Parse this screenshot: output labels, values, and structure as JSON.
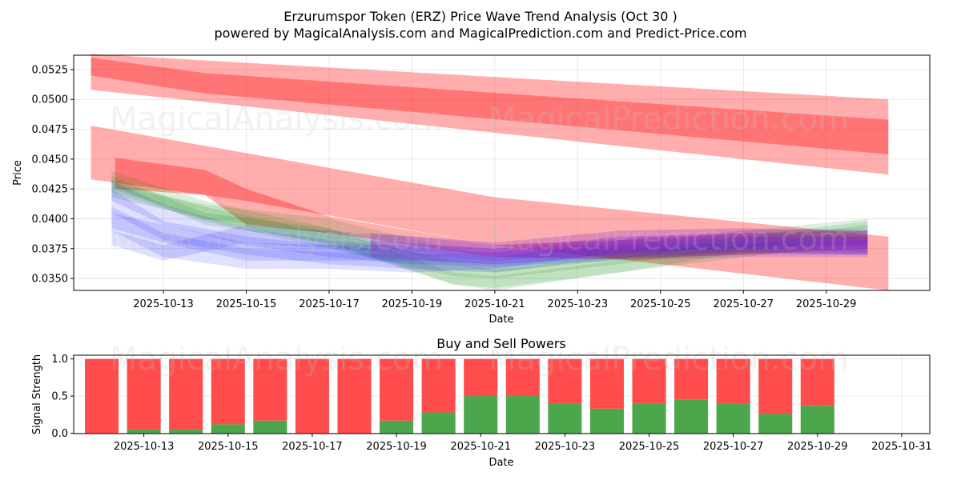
{
  "title": "Erzurumspor Token (ERZ) Price Wave Trend Analysis (Oct 30 )",
  "subtitle": "powered by MagicalAnalysis.com and MagicalPrediction.com and Predict-Price.com",
  "watermarks": [
    "MagicalAnalysis.com",
    "MagicalPrediction.com"
  ],
  "colors": {
    "red_band": "#ff0000",
    "blue_band": "#0000ff",
    "green_band": "#008000",
    "buy": "#4ca64c",
    "sell": "#ff4c4c"
  },
  "chart_data": [
    {
      "type": "area",
      "title": "",
      "xlabel": "Date",
      "ylabel": "Price",
      "xlim": [
        "2025-10-10T20:00",
        "2025-10-31T12:00"
      ],
      "ylim": [
        0.034,
        0.0537
      ],
      "x_ticks": [
        "2025-10-13",
        "2025-10-15",
        "2025-10-17",
        "2025-10-19",
        "2025-10-21",
        "2025-10-23",
        "2025-10-25",
        "2025-10-27",
        "2025-10-29"
      ],
      "y_ticks": [
        "0.0350",
        "0.0375",
        "0.0400",
        "0.0425",
        "0.0450",
        "0.0475",
        "0.0500",
        "0.0525"
      ],
      "grid": true,
      "bands": [
        {
          "color": "red",
          "points": [
            [
              "2025-10-11T06:00",
              0.0538,
              0.0508
            ],
            [
              "2025-10-30T12:00",
              0.05,
              0.0437
            ]
          ]
        },
        {
          "color": "red",
          "points": [
            [
              "2025-10-11T06:00",
              0.0535,
              0.052
            ],
            [
              "2025-10-14T00:00",
              0.0522,
              0.0505
            ],
            [
              "2025-10-30T12:00",
              0.0483,
              0.0454
            ]
          ]
        },
        {
          "color": "red",
          "points": [
            [
              "2025-10-11T06:00",
              0.0478,
              0.0433
            ],
            [
              "2025-10-15T00:00",
              0.0455,
              0.0415
            ],
            [
              "2025-10-21T00:00",
              0.0418,
              0.0378
            ],
            [
              "2025-10-30T12:00",
              0.0385,
              0.034
            ]
          ]
        },
        {
          "color": "red",
          "points": [
            [
              "2025-10-11T20:00",
              0.0451,
              0.0425
            ],
            [
              "2025-10-14T00:00",
              0.0441,
              0.042
            ],
            [
              "2025-10-15T00:00",
              0.0425,
              0.0395
            ],
            [
              "2025-10-17T00:00",
              0.0402,
              0.0388
            ],
            [
              "2025-10-21T00:00",
              0.0378,
              0.0368
            ],
            [
              "2025-10-24T00:00",
              0.0382,
              0.0366
            ],
            [
              "2025-10-27T00:00",
              0.0388,
              0.037
            ],
            [
              "2025-10-30T00:00",
              0.039,
              0.0375
            ]
          ]
        },
        {
          "color": "green",
          "points": [
            [
              "2025-10-11T18:00",
              0.0432,
              0.0422
            ],
            [
              "2025-10-14T00:00",
              0.041,
              0.0398
            ],
            [
              "2025-10-17T00:00",
              0.0388,
              0.0375
            ],
            [
              "2025-10-20T00:00",
              0.0365,
              0.0352
            ],
            [
              "2025-10-21T00:00",
              0.0362,
              0.035
            ],
            [
              "2025-10-24T00:00",
              0.0372,
              0.0362
            ],
            [
              "2025-10-27T00:00",
              0.0385,
              0.0375
            ],
            [
              "2025-10-30T00:00",
              0.0398,
              0.039
            ]
          ]
        },
        {
          "color": "green",
          "points": [
            [
              "2025-10-11T18:00",
              0.044,
              0.0425
            ],
            [
              "2025-10-14T00:00",
              0.0415,
              0.04
            ],
            [
              "2025-10-17T00:00",
              0.0392,
              0.0378
            ],
            [
              "2025-10-20T00:00",
              0.0362,
              0.0345
            ],
            [
              "2025-10-21T00:00",
              0.0357,
              0.034
            ],
            [
              "2025-10-24T00:00",
              0.0368,
              0.0355
            ],
            [
              "2025-10-27T00:00",
              0.0382,
              0.0372
            ],
            [
              "2025-10-30T00:00",
              0.0395,
              0.0385
            ]
          ]
        },
        {
          "color": "green",
          "points": [
            [
              "2025-10-11T18:00",
              0.0428,
              0.0418
            ],
            [
              "2025-10-14T00:00",
              0.0412,
              0.04
            ],
            [
              "2025-10-17T00:00",
              0.04,
              0.0388
            ],
            [
              "2025-10-20T00:00",
              0.0375,
              0.0362
            ],
            [
              "2025-10-21T00:00",
              0.0368,
              0.0355
            ],
            [
              "2025-10-24T00:00",
              0.0378,
              0.0366
            ],
            [
              "2025-10-27T00:00",
              0.039,
              0.038
            ],
            [
              "2025-10-30T00:00",
              0.04,
              0.0392
            ]
          ]
        },
        {
          "color": "green",
          "points": [
            [
              "2025-10-11T18:00",
              0.0436,
              0.0428
            ],
            [
              "2025-10-14T00:00",
              0.0405,
              0.0395
            ],
            [
              "2025-10-17T00:00",
              0.0392,
              0.038
            ],
            [
              "2025-10-20T00:00",
              0.0355,
              0.0345
            ],
            [
              "2025-10-21T00:00",
              0.0352,
              0.0342
            ],
            [
              "2025-10-24T00:00",
              0.0365,
              0.0355
            ],
            [
              "2025-10-27T00:00",
              0.0378,
              0.0368
            ],
            [
              "2025-10-30T00:00",
              0.039,
              0.038
            ]
          ]
        },
        {
          "color": "blue",
          "points": [
            [
              "2025-10-11T18:00",
              0.0425,
              0.0405
            ],
            [
              "2025-10-13T00:00",
              0.0398,
              0.0382
            ],
            [
              "2025-10-15T00:00",
              0.0385,
              0.037
            ],
            [
              "2025-10-17T00:00",
              0.0378,
              0.0362
            ],
            [
              "2025-10-19T00:00",
              0.0372,
              0.0358
            ],
            [
              "2025-10-21T00:00",
              0.0368,
              0.0355
            ],
            [
              "2025-10-24T00:00",
              0.0382,
              0.0368
            ],
            [
              "2025-10-27T00:00",
              0.0385,
              0.0372
            ],
            [
              "2025-10-30T00:00",
              0.0385,
              0.037
            ]
          ]
        },
        {
          "color": "blue",
          "points": [
            [
              "2025-10-11T18:00",
              0.041,
              0.039
            ],
            [
              "2025-10-13T00:00",
              0.0388,
              0.0368
            ],
            [
              "2025-10-15T00:00",
              0.0375,
              0.0358
            ],
            [
              "2025-10-17T00:00",
              0.0372,
              0.0358
            ],
            [
              "2025-10-19T00:00",
              0.037,
              0.0355
            ],
            [
              "2025-10-21T00:00",
              0.0372,
              0.0358
            ],
            [
              "2025-10-24T00:00",
              0.0385,
              0.0372
            ],
            [
              "2025-10-27T00:00",
              0.0388,
              0.0375
            ],
            [
              "2025-10-30T00:00",
              0.0386,
              0.0372
            ]
          ]
        },
        {
          "color": "blue",
          "points": [
            [
              "2025-10-11T18:00",
              0.039,
              0.0378
            ],
            [
              "2025-10-13T00:00",
              0.0378,
              0.0365
            ],
            [
              "2025-10-15T00:00",
              0.0395,
              0.038
            ],
            [
              "2025-10-17T00:00",
              0.039,
              0.0375
            ],
            [
              "2025-10-19T00:00",
              0.0385,
              0.037
            ],
            [
              "2025-10-21T00:00",
              0.0378,
              0.0365
            ],
            [
              "2025-10-24T00:00",
              0.0383,
              0.037
            ],
            [
              "2025-10-27T00:00",
              0.039,
              0.0376
            ],
            [
              "2025-10-30T00:00",
              0.0392,
              0.0378
            ]
          ]
        },
        {
          "color": "blue",
          "points": [
            [
              "2025-10-11T18:00",
              0.0432,
              0.0415
            ],
            [
              "2025-10-13T00:00",
              0.0412,
              0.0395
            ],
            [
              "2025-10-15T00:00",
              0.0392,
              0.0378
            ],
            [
              "2025-10-17T00:00",
              0.0382,
              0.0368
            ],
            [
              "2025-10-19T00:00",
              0.0376,
              0.0362
            ],
            [
              "2025-10-21T00:00",
              0.0372,
              0.036
            ],
            [
              "2025-10-24T00:00",
              0.0378,
              0.0365
            ],
            [
              "2025-10-27T00:00",
              0.038,
              0.0368
            ],
            [
              "2025-10-30T00:00",
              0.0382,
              0.0368
            ]
          ]
        },
        {
          "color": "blue",
          "points": [
            [
              "2025-10-11T18:00",
              0.0405,
              0.0392
            ],
            [
              "2025-10-13T00:00",
              0.0395,
              0.038
            ],
            [
              "2025-10-15T00:00",
              0.038,
              0.0365
            ],
            [
              "2025-10-17T00:00",
              0.0378,
              0.0365
            ],
            [
              "2025-10-19T00:00",
              0.0378,
              0.0365
            ],
            [
              "2025-10-21T00:00",
              0.0375,
              0.0362
            ],
            [
              "2025-10-24T00:00",
              0.038,
              0.0367
            ],
            [
              "2025-10-27T00:00",
              0.0384,
              0.037
            ],
            [
              "2025-10-30T00:00",
              0.0384,
              0.037
            ]
          ]
        },
        {
          "color": "purple",
          "points": [
            [
              "2025-10-18T00:00",
              0.0388,
              0.0375
            ],
            [
              "2025-10-21T00:00",
              0.038,
              0.0368
            ],
            [
              "2025-10-24T00:00",
              0.039,
              0.0375
            ],
            [
              "2025-10-27T00:00",
              0.0392,
              0.0378
            ],
            [
              "2025-10-30T00:00",
              0.039,
              0.0376
            ]
          ]
        },
        {
          "color": "purple",
          "points": [
            [
              "2025-10-18T00:00",
              0.0382,
              0.0368
            ],
            [
              "2025-10-21T00:00",
              0.0375,
              0.0362
            ],
            [
              "2025-10-24T00:00",
              0.0385,
              0.037
            ],
            [
              "2025-10-27T00:00",
              0.0386,
              0.0372
            ],
            [
              "2025-10-30T00:00",
              0.0383,
              0.037
            ]
          ]
        }
      ]
    },
    {
      "type": "bar",
      "title": "Buy and Sell Powers",
      "xlabel": "Date",
      "ylabel": "Signal Strength",
      "ylim": [
        -0.005,
        1.05
      ],
      "xlim": [
        "2025-10-11T08:00",
        "2025-10-31T16:00"
      ],
      "x_ticks": [
        "2025-10-13",
        "2025-10-15",
        "2025-10-17",
        "2025-10-19",
        "2025-10-21",
        "2025-10-23",
        "2025-10-25",
        "2025-10-27",
        "2025-10-29",
        "2025-10-31"
      ],
      "y_ticks": [
        "0.0",
        "0.5",
        "1.0"
      ],
      "grid": true,
      "categories": [
        "2025-10-12",
        "2025-10-13",
        "2025-10-14",
        "2025-10-15",
        "2025-10-16",
        "2025-10-17",
        "2025-10-18",
        "2025-10-19",
        "2025-10-20",
        "2025-10-21",
        "2025-10-22",
        "2025-10-23",
        "2025-10-24",
        "2025-10-25",
        "2025-10-26",
        "2025-10-27",
        "2025-10-28",
        "2025-10-29"
      ],
      "series": [
        {
          "name": "Buy",
          "values": [
            0.0,
            0.05,
            0.05,
            0.12,
            0.17,
            0.0,
            0.0,
            0.17,
            0.28,
            0.5,
            0.5,
            0.4,
            0.33,
            0.4,
            0.45,
            0.4,
            0.26,
            0.37
          ]
        },
        {
          "name": "Sell",
          "values": [
            1.0,
            0.95,
            0.95,
            0.88,
            0.83,
            1.0,
            1.0,
            0.83,
            0.72,
            0.5,
            0.5,
            0.6,
            0.67,
            0.6,
            0.55,
            0.6,
            0.74,
            0.63
          ]
        }
      ]
    }
  ]
}
